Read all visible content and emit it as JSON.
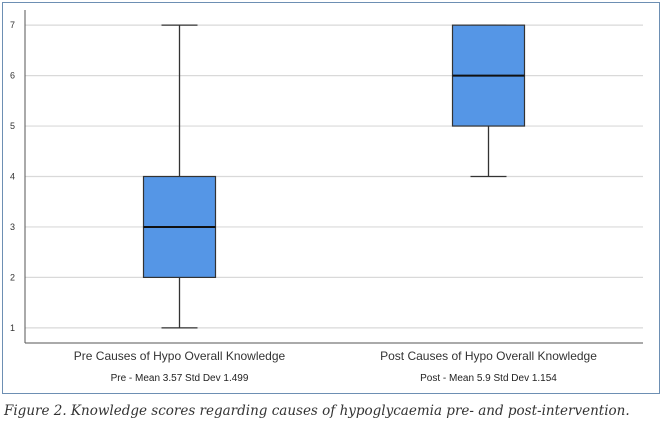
{
  "chart_data": {
    "type": "box",
    "ylim": [
      0.7,
      7.3
    ],
    "yticks": [
      1,
      2,
      3,
      4,
      5,
      6,
      7
    ],
    "grid": "horizontal",
    "box_color": "#5596e6",
    "box_stroke": "#333333",
    "grid_color": "#d9d9d9",
    "categories": [
      {
        "label": "Pre Causes of Hypo Overall Knowledge",
        "stats_text": "Pre - Mean 3.57 Std Dev 1.499",
        "min": 1,
        "q1": 2,
        "median": 3,
        "q3": 4,
        "max": 7
      },
      {
        "label": "Post Causes of Hypo Overall Knowledge",
        "stats_text": "Post - Mean 5.9 Std Dev 1.154",
        "min": 4,
        "q1": 5,
        "median": 6,
        "q3": 7,
        "max": 7
      }
    ]
  },
  "caption": "Figure 2. Knowledge scores regarding causes of hypoglycaemia pre- and post-intervention."
}
